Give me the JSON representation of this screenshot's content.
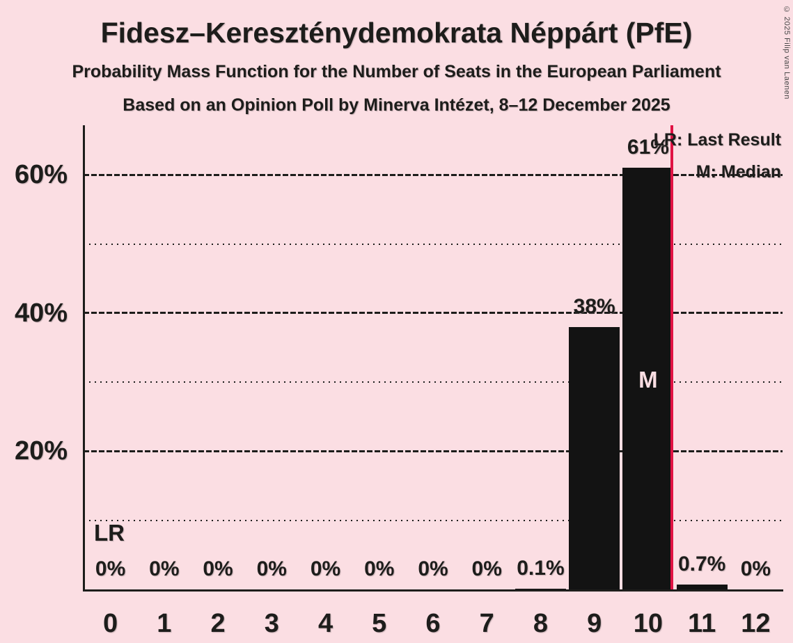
{
  "page": {
    "title": "Fidesz–Kereszténydemokrata Néppárt (PfE)",
    "subtitle1": "Probability Mass Function for the Number of Seats in the European Parliament",
    "subtitle2": "Based on an Opinion Poll by Minerva Intézet, 8–12 December 2025",
    "copyright": "© 2025 Filip van Laenen"
  },
  "legend": {
    "lr": "LR: Last Result",
    "m": "M: Median"
  },
  "annotations": {
    "last_result": "LR",
    "median": "M"
  },
  "colors": {
    "background": "#fbdee3",
    "bar": "#131313",
    "text": "#1d1d1b",
    "last_result_line": "#e01243",
    "median_label_on_bar": "#fbdee3",
    "copyright_text": "#474747"
  },
  "y_axis": {
    "ticks": [
      {
        "label": "60%",
        "value": 60
      },
      {
        "label": "40%",
        "value": 40
      },
      {
        "label": "20%",
        "value": 20
      }
    ],
    "minor_gridlines": [
      50,
      30,
      10
    ]
  },
  "chart_data": {
    "type": "bar",
    "title": "Fidesz–Kereszténydemokrata Néppárt (PfE) — Probability Mass Function for the Number of Seats in the European Parliament",
    "categories": [
      "0",
      "1",
      "2",
      "3",
      "4",
      "5",
      "6",
      "7",
      "8",
      "9",
      "10",
      "11",
      "12"
    ],
    "values": [
      0,
      0,
      0,
      0,
      0,
      0,
      0,
      0,
      0.1,
      38,
      61,
      0.7,
      0
    ],
    "bar_labels": [
      "0%",
      "0%",
      "0%",
      "0%",
      "0%",
      "0%",
      "0%",
      "0%",
      "0.1%",
      "38%",
      "61%",
      "0.7%",
      "0%"
    ],
    "xlabel": "",
    "ylabel": "",
    "ylim": [
      0,
      67
    ],
    "median_seat": 10,
    "last_result_line_x": 10.5,
    "legend_position": "top-right",
    "grid": "horizontal; solid dashes at 20/40/60, dotted at 10/30/50"
  }
}
